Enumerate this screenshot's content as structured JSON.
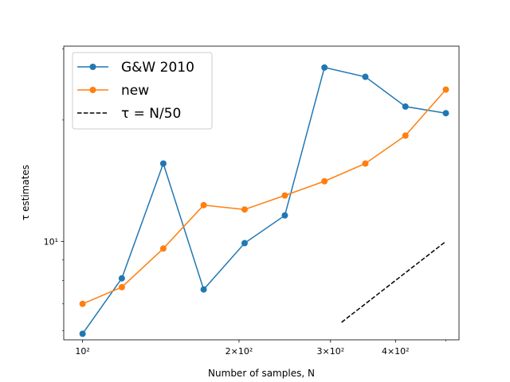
{
  "chart_data": {
    "type": "line",
    "xlabel": "Number of samples, N",
    "ylabel": "τ estimates",
    "xscale": "log",
    "yscale": "log",
    "xlim": [
      92,
      530
    ],
    "ylim": [
      5.7,
      30.5
    ],
    "x_tick_labels": [
      {
        "value": 100,
        "label": "10²"
      },
      {
        "value": 200,
        "label": "2×10²"
      },
      {
        "value": 300,
        "label": "3×10²"
      },
      {
        "value": 400,
        "label": "4×10²"
      }
    ],
    "y_tick_labels": [
      {
        "value": 10,
        "label": "10¹"
      }
    ],
    "legend": {
      "placement": "upper-left"
    },
    "grid": false,
    "series": [
      {
        "name": "G&W 2010",
        "color": "#1f77b4",
        "marker": "circle",
        "linestyle": "solid",
        "x": [
          100,
          119,
          143,
          171,
          205,
          245,
          292,
          350,
          418,
          500
        ],
        "y": [
          5.9,
          8.1,
          15.6,
          7.6,
          9.9,
          11.6,
          27.0,
          25.6,
          21.6,
          20.8
        ]
      },
      {
        "name": "new",
        "color": "#ff7f0e",
        "marker": "circle",
        "linestyle": "solid",
        "x": [
          100,
          119,
          143,
          171,
          205,
          245,
          292,
          350,
          418,
          500
        ],
        "y": [
          7.0,
          7.7,
          9.6,
          12.3,
          12.0,
          13.0,
          14.1,
          15.6,
          18.3,
          23.8
        ]
      },
      {
        "name": "τ = N/50",
        "color": "#000000",
        "marker": "none",
        "linestyle": "dashed",
        "x": [
          315,
          500
        ],
        "y": [
          6.3,
          10.0
        ]
      }
    ]
  }
}
